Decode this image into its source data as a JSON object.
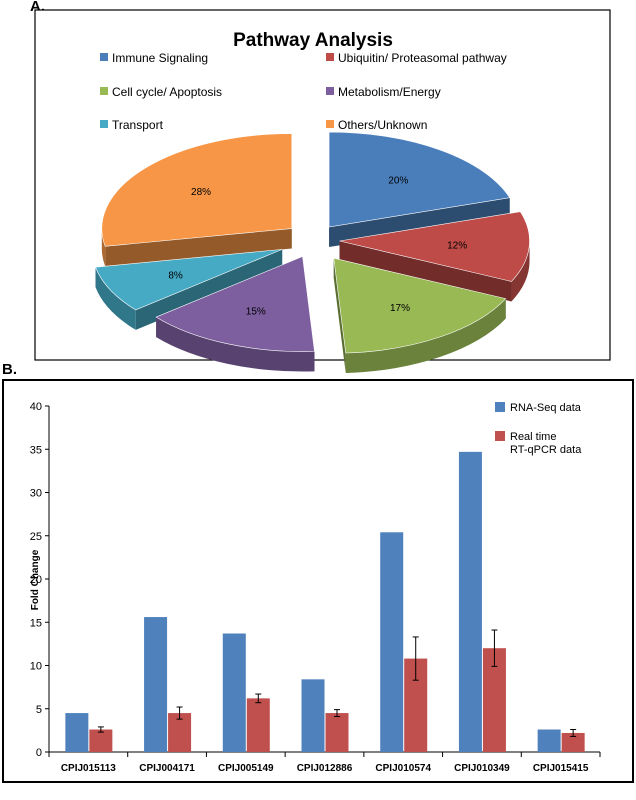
{
  "panels": {
    "a_label": "A.",
    "b_label": "B."
  },
  "chart_data": [
    {
      "type": "pie",
      "title": "Pathway Analysis",
      "slices": [
        {
          "name": "Immune Signaling",
          "value": 20,
          "label": "20%",
          "color": "#4A7EBB"
        },
        {
          "name": "Ubiquitin/ Proteasomal pathway",
          "value": 12,
          "label": "12%",
          "color": "#BE4B48"
        },
        {
          "name": "Cell cycle/ Apoptosis",
          "value": 17,
          "label": "17%",
          "color": "#98B954"
        },
        {
          "name": "Metabolism/Energy",
          "value": 15,
          "label": "15%",
          "color": "#7D5FA0"
        },
        {
          "name": "Transport",
          "value": 8,
          "label": "8%",
          "color": "#46AAC5"
        },
        {
          "name": "Others/Unknown",
          "value": 28,
          "label": "28%",
          "color": "#F79646"
        }
      ],
      "legend_placement": "top",
      "style": "3d-exploded"
    },
    {
      "type": "bar",
      "categories": [
        "CPIJ015113",
        "CPIJ004171",
        "CPIJ005149",
        "CPIJ012886",
        "CPIJ010574",
        "CPIJ010349",
        "CPIJ015415"
      ],
      "series": [
        {
          "name": "RNA-Seq data",
          "values": [
            4.5,
            15.6,
            13.7,
            8.4,
            25.4,
            34.7,
            2.6
          ],
          "color": "#4F81BD"
        },
        {
          "name_lines": [
            "Real time",
            "RT-qPCR data"
          ],
          "values": [
            2.6,
            4.5,
            6.2,
            4.5,
            10.8,
            12.0,
            2.2
          ],
          "errors": [
            0.3,
            0.7,
            0.5,
            0.4,
            2.5,
            2.1,
            0.4
          ],
          "color": "#C0504D"
        }
      ],
      "ylabel": "Fold Change",
      "ylim": [
        0,
        40
      ],
      "yticks": [
        0,
        5,
        10,
        15,
        20,
        25,
        30,
        35,
        40
      ],
      "legend_placement": "top-right",
      "grid": false
    }
  ]
}
